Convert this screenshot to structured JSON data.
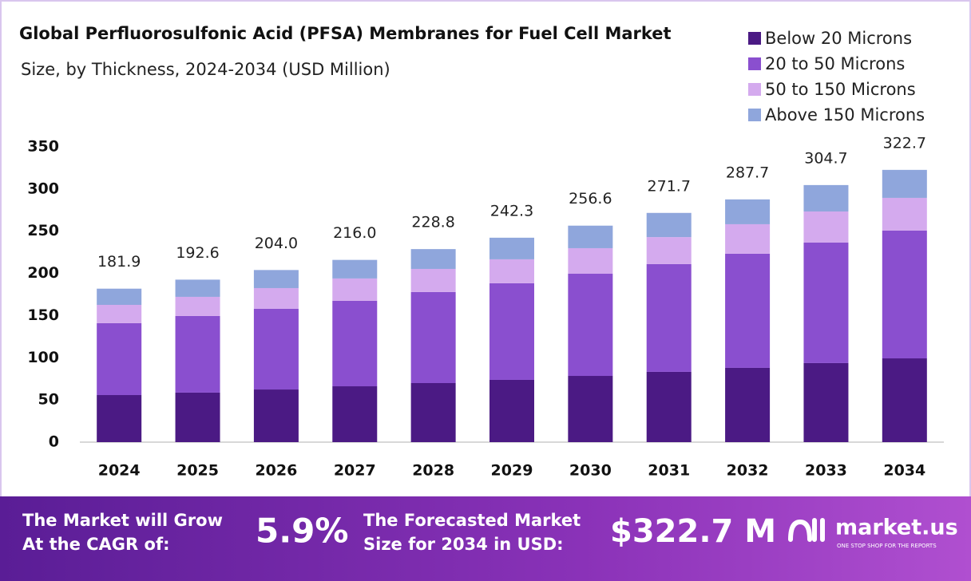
{
  "chart_data": {
    "type": "stacked_bar",
    "title": "Global Perfluorosulfonic Acid (PFSA) Membranes for Fuel Cell Market",
    "subtitle": "Size, by Thickness, 2024-2034 (USD Million)",
    "categories": [
      "2024",
      "2025",
      "2026",
      "2027",
      "2028",
      "2029",
      "2030",
      "2031",
      "2032",
      "2033",
      "2034"
    ],
    "series": [
      {
        "name": "Below 20 Microns",
        "color": "#4b1a84",
        "values": [
          55.8,
          58.7,
          62.4,
          66.2,
          70.0,
          73.8,
          78.5,
          83.3,
          88.0,
          93.7,
          99.3
        ]
      },
      {
        "name": "20 to 50 Microns",
        "color": "#8a4fcf",
        "values": [
          85.2,
          90.8,
          95.6,
          101.3,
          107.9,
          114.5,
          121.1,
          127.7,
          135.3,
          142.8,
          151.4
        ]
      },
      {
        "name": "50 to 150 Microns",
        "color": "#d4aaee",
        "values": [
          21.7,
          22.7,
          24.6,
          26.5,
          27.4,
          28.4,
          30.3,
          32.0,
          35.0,
          36.9,
          38.8
        ]
      },
      {
        "name": "Above 150 Microns",
        "color": "#8fa6dc",
        "values": [
          19.2,
          20.4,
          21.4,
          22.0,
          23.5,
          25.6,
          26.7,
          28.7,
          29.4,
          31.3,
          33.2
        ]
      }
    ],
    "totals": {
      "values": [
        181.9,
        192.6,
        204.0,
        216.0,
        228.8,
        242.3,
        256.6,
        271.7,
        287.7,
        304.7,
        322.7
      ],
      "value_labels": [
        "181.9",
        "192.6",
        "204.0",
        "216.0",
        "228.8",
        "242.3",
        "256.6",
        "271.7",
        "287.7",
        "304.7",
        "322.7"
      ]
    },
    "ylim": [
      0,
      350
    ],
    "yticks": [
      0,
      50,
      100,
      150,
      200,
      250,
      300,
      350
    ],
    "grid": false,
    "legend": "top-right"
  },
  "footer": {
    "cagr_text_1": "The Market will Grow",
    "cagr_text_2": "At the CAGR of:",
    "cagr_value": "5.9%",
    "forecast_text_1": "The Forecasted Market",
    "forecast_text_2": "Size for 2034 in USD:",
    "forecast_value": "$322.7 M",
    "brand": "market.us",
    "tagline": "ONE STOP SHOP FOR THE REPORTS"
  }
}
